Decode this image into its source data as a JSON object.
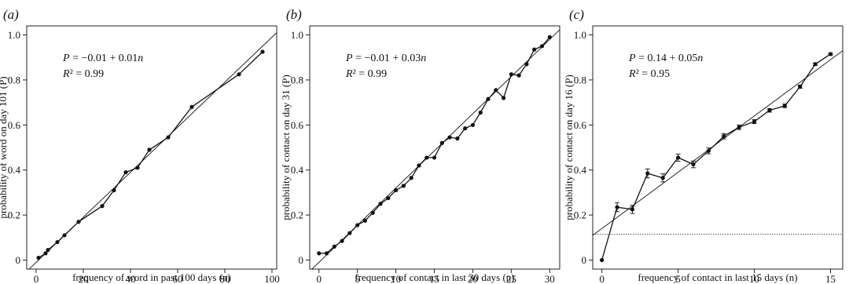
{
  "chart_data": [
    {
      "panel_label": "(a)",
      "type": "line",
      "xlabel": "frequency of word in past 100 days (n)",
      "ylabel": "probability of word on day 101 (P)",
      "xlim": [
        -4,
        102
      ],
      "ylim": [
        -0.04,
        1.04
      ],
      "xticks": [
        "0",
        "20",
        "40",
        "60",
        "80",
        "100"
      ],
      "xtick_values": [
        0,
        20,
        40,
        60,
        80,
        100
      ],
      "yticks": [
        "0",
        "0.2",
        "0.4",
        "0.6",
        "0.8",
        "1.0"
      ],
      "ytick_values": [
        0,
        0.2,
        0.4,
        0.6,
        0.8,
        1.0
      ],
      "equation": "P = −0.01 + 0.01n",
      "r2": "R² = 0.99",
      "series": [
        {
          "x": [
            1,
            4,
            5,
            9,
            12,
            18,
            28,
            33,
            38,
            43,
            48,
            56,
            66,
            86,
            96
          ],
          "y": [
            0.01,
            0.03,
            0.045,
            0.08,
            0.11,
            0.17,
            0.24,
            0.31,
            0.39,
            0.41,
            0.49,
            0.545,
            0.68,
            0.825,
            0.925
          ]
        }
      ],
      "fit_line": {
        "intercept": -0.01,
        "slope": 0.01
      },
      "grid": false
    },
    {
      "panel_label": "(b)",
      "type": "line",
      "xlabel": "frequency of contact in last 30 days (n)",
      "ylabel": "probability of contact on day 31 (P)",
      "xlim": [
        -1.2,
        31.3
      ],
      "ylim": [
        -0.04,
        1.04
      ],
      "xticks": [
        "0",
        "5",
        "10",
        "15",
        "20",
        "25",
        "30"
      ],
      "xtick_values": [
        0,
        5,
        10,
        15,
        20,
        25,
        30
      ],
      "yticks": [
        "0",
        "0.2",
        "0.4",
        "0.6",
        "0.8",
        "1.0"
      ],
      "ytick_values": [
        0,
        0.2,
        0.4,
        0.6,
        0.8,
        1.0
      ],
      "equation": "P = −0.01 + 0.03n",
      "r2": "R² = 0.99",
      "series": [
        {
          "x": [
            0,
            1,
            2,
            3,
            4,
            5,
            6,
            7,
            8,
            9,
            10,
            11,
            12,
            13,
            14,
            15,
            16,
            17,
            18,
            19,
            20,
            21,
            22,
            23,
            24,
            25,
            26,
            27,
            28,
            29,
            30
          ],
          "y": [
            0.03,
            0.03,
            0.06,
            0.085,
            0.12,
            0.155,
            0.175,
            0.21,
            0.25,
            0.275,
            0.31,
            0.33,
            0.365,
            0.42,
            0.455,
            0.455,
            0.52,
            0.545,
            0.54,
            0.585,
            0.6,
            0.655,
            0.715,
            0.755,
            0.72,
            0.825,
            0.82,
            0.87,
            0.935,
            0.95,
            0.99
          ]
        }
      ],
      "fit_line": {
        "intercept": -0.01,
        "slope": 0.033
      },
      "grid": false
    },
    {
      "panel_label": "(c)",
      "type": "line",
      "xlabel": "frequency of contact in last 15 days (n)",
      "ylabel": "probability of contact on day 16 (P)",
      "xlim": [
        -0.6,
        15.8
      ],
      "ylim": [
        -0.04,
        1.04
      ],
      "xticks": [
        "0",
        "5",
        "10",
        "15"
      ],
      "xtick_values": [
        0,
        5,
        10,
        15
      ],
      "yticks": [
        "0",
        "0.2",
        "0.4",
        "0.6",
        "0.8",
        "1.0"
      ],
      "ytick_values": [
        0,
        0.2,
        0.4,
        0.6,
        0.8,
        1.0
      ],
      "equation": "P = 0.14 + 0.05n",
      "r2": "R² = 0.95",
      "series": [
        {
          "x": [
            0,
            1,
            2,
            3,
            4,
            5,
            6,
            7,
            8,
            9,
            10,
            11,
            12,
            13,
            14,
            15
          ],
          "y": [
            0.0,
            0.235,
            0.225,
            0.385,
            0.365,
            0.455,
            0.425,
            0.485,
            0.55,
            0.59,
            0.615,
            0.665,
            0.685,
            0.77,
            0.87,
            0.915
          ],
          "error": [
            0,
            0.02,
            0.018,
            0.02,
            0.018,
            0.016,
            0.015,
            0.013,
            0.012,
            0.01,
            0.009,
            0.008,
            0.008,
            0.007,
            0.006,
            0.005
          ]
        }
      ],
      "fit_line": {
        "intercept": 0.14,
        "slope": 0.05
      },
      "reference_line": {
        "y": 0.115,
        "style": "dotted"
      },
      "grid": false
    }
  ]
}
